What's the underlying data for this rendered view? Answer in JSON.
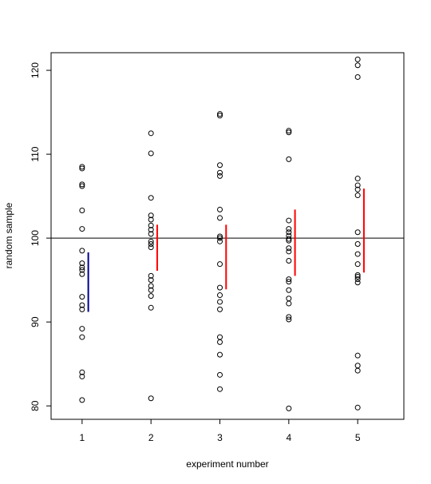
{
  "chart_data": {
    "type": "scatter",
    "title": "",
    "xlabel": "experiment number",
    "ylabel": "random sample",
    "xlim": [
      0.55,
      5.67
    ],
    "ylim": [
      78.4,
      122.1
    ],
    "x_ticks": [
      1,
      2,
      3,
      4,
      5
    ],
    "y_ticks": [
      80,
      90,
      100,
      110,
      120
    ],
    "grid": false,
    "legend": "none",
    "reference_line": {
      "y": 100,
      "color": "#000000"
    },
    "colors": {
      "points": "#000000",
      "interval_excludes_100": "#00008b",
      "interval_includes_100": "#ff0000"
    },
    "series": [
      {
        "x": 1,
        "values": [
          108.5,
          108.3,
          106.4,
          106.2,
          103.3,
          101.1,
          98.5,
          97.0,
          96.5,
          96.2,
          95.7,
          93.0,
          92.0,
          91.5,
          89.2,
          88.2,
          84.0,
          83.5,
          80.7
        ],
        "interval": {
          "low": 91.2,
          "high": 98.3,
          "color": "#00008b"
        }
      },
      {
        "x": 2,
        "values": [
          112.5,
          110.1,
          104.8,
          102.7,
          102.2,
          101.5,
          101.0,
          100.5,
          99.6,
          99.3,
          98.9,
          95.5,
          95.0,
          94.3,
          93.8,
          93.1,
          91.7,
          80.9
        ],
        "interval": {
          "low": 96.1,
          "high": 101.6,
          "color": "#ff0000"
        }
      },
      {
        "x": 3,
        "values": [
          114.8,
          114.6,
          108.7,
          107.8,
          107.4,
          103.4,
          102.4,
          100.2,
          100.0,
          99.6,
          96.9,
          94.1,
          93.2,
          92.4,
          91.5,
          88.2,
          87.6,
          86.1,
          83.7,
          82.0
        ],
        "interval": {
          "low": 93.9,
          "high": 101.6,
          "color": "#ff0000"
        }
      },
      {
        "x": 4,
        "values": [
          112.8,
          112.6,
          109.4,
          102.1,
          101.1,
          100.7,
          100.3,
          99.9,
          99.7,
          98.8,
          98.4,
          97.3,
          95.1,
          94.8,
          93.8,
          92.8,
          92.2,
          90.6,
          90.3,
          79.7
        ],
        "interval": {
          "low": 95.5,
          "high": 103.4,
          "color": "#ff0000"
        }
      },
      {
        "x": 5,
        "values": [
          121.3,
          120.6,
          119.2,
          107.1,
          106.3,
          105.8,
          105.1,
          100.7,
          99.3,
          98.1,
          96.9,
          95.6,
          95.4,
          95.1,
          94.7,
          86.0,
          84.8,
          84.2,
          79.8
        ],
        "interval": {
          "low": 95.9,
          "high": 105.9,
          "color": "#ff0000"
        }
      }
    ]
  }
}
